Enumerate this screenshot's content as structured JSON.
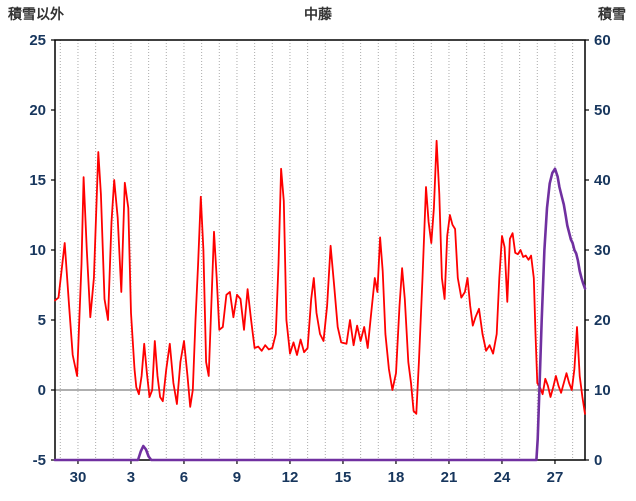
{
  "header": {
    "left_axis_title": "積雪以外",
    "title": "中藤",
    "right_axis_title": "積雪"
  },
  "chart_data": {
    "type": "line",
    "title": "中藤",
    "left_axis": {
      "label": "積雪以外",
      "min": -5,
      "max": 25,
      "ticks": [
        25,
        20,
        15,
        10,
        5,
        0,
        -5
      ]
    },
    "right_axis": {
      "label": "積雪",
      "min": 0,
      "max": 60,
      "ticks": [
        60,
        50,
        40,
        30,
        20,
        10,
        0
      ]
    },
    "x_axis": {
      "domain": [
        0,
        30
      ],
      "tick_labels": [
        "30",
        "3",
        "6",
        "9",
        "12",
        "15",
        "18",
        "21",
        "24",
        "27"
      ],
      "tick_positions": [
        1.3,
        4.3,
        7.3,
        10.3,
        13.3,
        16.3,
        19.3,
        22.3,
        25.3,
        28.3
      ],
      "grid_start": 0.3,
      "grid_step": 1,
      "grid_count": 30
    },
    "zero_line": {
      "axis": "left",
      "value": 0,
      "color": "#7f7f7f"
    },
    "grid": {
      "color": "#ababab",
      "style": "dotted"
    },
    "legend": "none",
    "series": [
      {
        "name": "left-axis-red-series",
        "axis": "left",
        "color": "#ff0000",
        "width": 1.8,
        "x": [
          0,
          0.2,
          0.55,
          0.8,
          1.0,
          1.25,
          1.5,
          1.62,
          1.8,
          2.0,
          2.2,
          2.45,
          2.6,
          2.8,
          3.0,
          3.2,
          3.35,
          3.55,
          3.75,
          3.95,
          4.15,
          4.3,
          4.5,
          4.6,
          4.75,
          4.9,
          5.05,
          5.2,
          5.35,
          5.5,
          5.65,
          5.8,
          5.95,
          6.1,
          6.3,
          6.5,
          6.7,
          6.9,
          7.1,
          7.3,
          7.5,
          7.65,
          7.8,
          7.95,
          8.1,
          8.25,
          8.4,
          8.55,
          8.7,
          8.85,
          9.0,
          9.15,
          9.3,
          9.5,
          9.7,
          9.9,
          10.1,
          10.3,
          10.5,
          10.7,
          10.9,
          11.1,
          11.3,
          11.5,
          11.7,
          11.9,
          12.1,
          12.3,
          12.5,
          12.65,
          12.8,
          12.95,
          13.1,
          13.3,
          13.5,
          13.7,
          13.9,
          14.1,
          14.3,
          14.5,
          14.65,
          14.8,
          15.0,
          15.2,
          15.4,
          15.6,
          15.8,
          16.0,
          16.2,
          16.5,
          16.7,
          16.9,
          17.1,
          17.3,
          17.5,
          17.7,
          17.9,
          18.1,
          18.25,
          18.4,
          18.55,
          18.7,
          18.9,
          19.1,
          19.3,
          19.5,
          19.65,
          19.8,
          20.0,
          20.15,
          20.3,
          20.45,
          20.6,
          20.8,
          21.0,
          21.15,
          21.3,
          21.45,
          21.6,
          21.75,
          21.9,
          22.05,
          22.2,
          22.35,
          22.5,
          22.65,
          22.8,
          23.0,
          23.2,
          23.35,
          23.5,
          23.65,
          23.8,
          24.0,
          24.2,
          24.4,
          24.6,
          24.8,
          25.0,
          25.15,
          25.3,
          25.45,
          25.6,
          25.75,
          25.9,
          26.05,
          26.2,
          26.35,
          26.5,
          26.65,
          26.8,
          26.95,
          27.1,
          27.2,
          27.3,
          27.45,
          27.6,
          27.75,
          27.9,
          28.05,
          28.2,
          28.35,
          28.5,
          28.65,
          28.8,
          28.95,
          29.1,
          29.25,
          29.4,
          29.55,
          29.7,
          29.85,
          30.0
        ],
        "y": [
          6.4,
          6.6,
          10.5,
          6.0,
          2.5,
          1.0,
          9.0,
          15.2,
          10.0,
          5.2,
          8.0,
          17.0,
          14.0,
          6.5,
          5.0,
          12.0,
          15.0,
          12.3,
          7.0,
          14.8,
          13.0,
          5.5,
          1.5,
          0.2,
          -0.3,
          1.0,
          3.3,
          1.2,
          -0.5,
          0.0,
          3.5,
          1.0,
          -0.5,
          -0.8,
          1.5,
          3.3,
          0.5,
          -1.0,
          2.0,
          3.5,
          1.0,
          -1.2,
          0.0,
          5.0,
          9.0,
          13.8,
          10.0,
          2.0,
          1.0,
          6.0,
          11.3,
          8.0,
          4.3,
          4.5,
          6.8,
          7.0,
          5.2,
          6.8,
          6.5,
          4.3,
          7.2,
          5.0,
          3.0,
          3.1,
          2.8,
          3.2,
          2.9,
          3.0,
          4.0,
          9.0,
          15.8,
          13.5,
          5.0,
          2.6,
          3.4,
          2.5,
          3.6,
          2.7,
          3.0,
          6.5,
          8.0,
          5.5,
          4.0,
          3.5,
          6.0,
          10.3,
          7.5,
          4.5,
          3.4,
          3.3,
          5.0,
          3.2,
          4.6,
          3.5,
          4.5,
          3.0,
          5.5,
          8.0,
          7.0,
          10.9,
          8.5,
          4.0,
          1.5,
          0.0,
          1.2,
          6.0,
          8.7,
          6.5,
          2.0,
          0.5,
          -1.5,
          -1.7,
          2.0,
          8.0,
          14.5,
          12.0,
          10.5,
          13.0,
          17.8,
          14.0,
          8.0,
          6.5,
          11.0,
          12.5,
          11.8,
          11.5,
          8.0,
          6.6,
          7.0,
          8.0,
          6.0,
          4.6,
          5.2,
          5.8,
          4.0,
          2.8,
          3.2,
          2.6,
          4.0,
          8.0,
          11.0,
          10.2,
          6.3,
          10.8,
          11.2,
          9.8,
          9.7,
          10.0,
          9.5,
          9.6,
          9.3,
          9.6,
          8.0,
          4.0,
          0.5,
          0.2,
          -0.3,
          0.8,
          0.3,
          -0.5,
          0.2,
          1.0,
          0.3,
          -0.2,
          0.5,
          1.2,
          0.5,
          0.0,
          1.5,
          4.5,
          1.0,
          -0.5,
          -1.7
        ]
      },
      {
        "name": "right-axis-snow-series",
        "axis": "right",
        "color": "#7030a0",
        "width": 2.6,
        "x": [
          0,
          4.7,
          4.85,
          5.0,
          5.15,
          5.3,
          5.45,
          27.25,
          27.32,
          27.42,
          27.55,
          27.7,
          27.85,
          28.0,
          28.15,
          28.3,
          28.45,
          28.55,
          28.7,
          28.8,
          28.9,
          29.0,
          29.1,
          29.2,
          29.3,
          29.4,
          29.5,
          29.6,
          29.7,
          29.8,
          29.9,
          30.0
        ],
        "y": [
          0,
          0,
          1.2,
          2.0,
          1.5,
          0.5,
          0,
          0,
          3,
          10,
          20,
          30,
          36,
          39.5,
          41,
          41.6,
          40.5,
          39,
          37.5,
          36.5,
          35,
          33.5,
          32.5,
          31.5,
          31,
          30,
          29.5,
          28.5,
          27,
          26,
          25.2,
          24.5
        ]
      }
    ],
    "styles": {
      "tick_label_color": "#17365d",
      "frame_color": "#000000",
      "background": "#ffffff"
    }
  }
}
